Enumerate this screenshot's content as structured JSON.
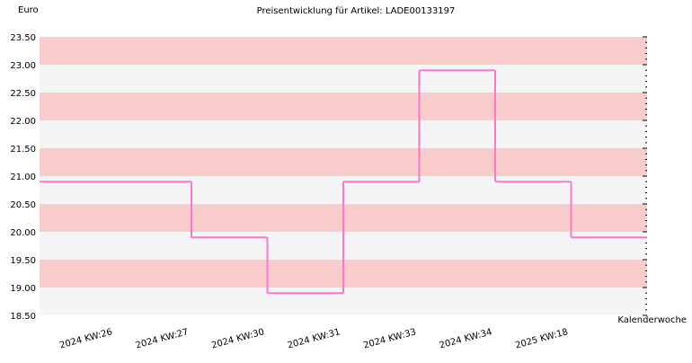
{
  "chart_data": {
    "type": "step",
    "title": "Preisentwicklung für Artikel: LADE00133197",
    "y_label": "Euro",
    "x_label": "Kalenderwoche",
    "categories": [
      "2024 KW:26",
      "2024 KW:27",
      "2024 KW:30",
      "2024 KW:31",
      "2024 KW:33",
      "2024 KW:34",
      "2025 KW:18"
    ],
    "values": [
      20.9,
      19.9,
      18.9,
      20.9,
      22.9,
      20.9,
      19.9
    ],
    "color": "#ff77cc",
    "band_colors": [
      "#f9cccc",
      "#f5f5f5"
    ],
    "ylim": [
      18.5,
      23.5
    ],
    "yticks": [
      {
        "value": 18.5,
        "label": "18.50"
      },
      {
        "value": 19,
        "label": "19.00"
      },
      {
        "value": 19.5,
        "label": "19.50"
      },
      {
        "value": 20,
        "label": "20.00"
      },
      {
        "value": 20.5,
        "label": "20.50"
      },
      {
        "value": 21,
        "label": "21.00"
      },
      {
        "value": 21.5,
        "label": "21.50"
      },
      {
        "value": 22,
        "label": "22.00"
      },
      {
        "value": 22.5,
        "label": "22.50"
      },
      {
        "value": 23,
        "label": "23.00"
      },
      {
        "value": 23.5,
        "label": "23.50"
      }
    ]
  }
}
